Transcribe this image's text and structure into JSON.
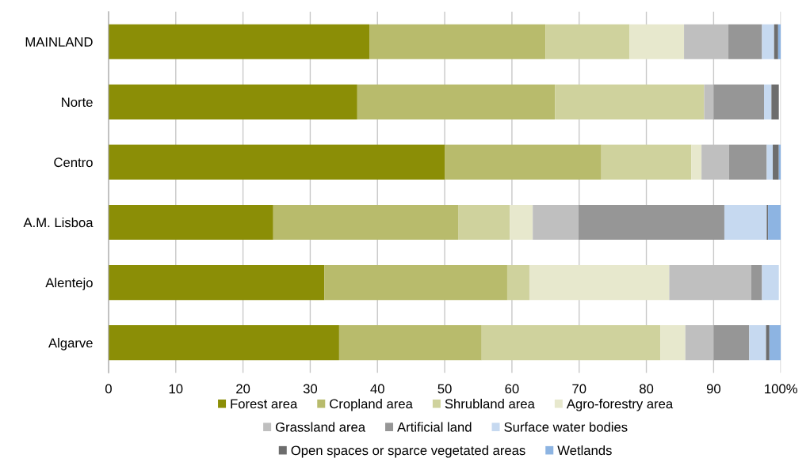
{
  "chart_data": {
    "type": "bar",
    "orientation": "horizontal",
    "stacked": true,
    "categories": [
      "MAINLAND",
      "Norte",
      "Centro",
      "A.M. Lisboa",
      "Alentejo",
      "Algarve"
    ],
    "xlim": [
      0,
      100
    ],
    "xticks": [
      0,
      10,
      20,
      30,
      40,
      50,
      60,
      70,
      80,
      90,
      {
        "value": 100,
        "label": "100%"
      }
    ],
    "grid": "x",
    "legend": "bottom",
    "series": [
      {
        "name": "Forest area",
        "color": "#8b8e06",
        "values": [
          38.8,
          37.0,
          50.0,
          24.5,
          32.1,
          34.3
        ]
      },
      {
        "name": "Cropland area",
        "color": "#b8bb6c",
        "values": [
          26.2,
          29.4,
          23.3,
          27.5,
          27.2,
          21.2
        ]
      },
      {
        "name": "Shrubland area",
        "color": "#cfd29d",
        "values": [
          12.5,
          22.2,
          13.4,
          7.7,
          3.3,
          26.6
        ]
      },
      {
        "name": "Agro-forestry area",
        "color": "#e7e8cd",
        "values": [
          8.1,
          null,
          1.5,
          3.4,
          20.8,
          3.7
        ]
      },
      {
        "name": "Grassland area",
        "color": "#bfbfbf",
        "values": [
          6.6,
          1.4,
          4.1,
          6.8,
          12.2,
          4.2
        ]
      },
      {
        "name": "Artificial land",
        "color": "#969696",
        "values": [
          5.0,
          7.5,
          5.6,
          21.7,
          1.6,
          5.3
        ]
      },
      {
        "name": "Surface water bodies",
        "color": "#c6d9f0",
        "values": [
          1.8,
          1.1,
          0.9,
          6.3,
          2.5,
          2.5
        ]
      },
      {
        "name": "Open spaces or sparce vegetated areas",
        "color": "#6d6d6d",
        "values": [
          0.6,
          1.1,
          0.9,
          0.2,
          null,
          0.5
        ]
      },
      {
        "name": "Wetlands",
        "color": "#8db4e2",
        "values": [
          0.4,
          null,
          0.3,
          1.9,
          null,
          1.7
        ]
      }
    ]
  }
}
